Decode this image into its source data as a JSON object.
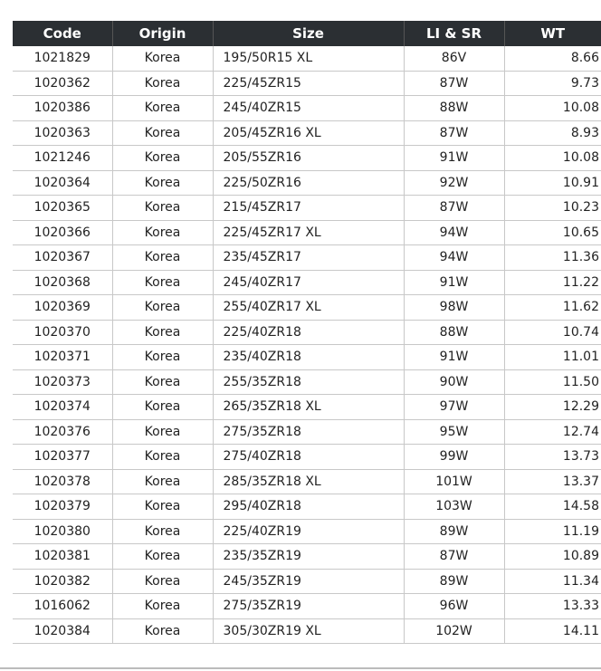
{
  "table": {
    "header": [
      "Code",
      "Origin",
      "Size",
      "LI & SR",
      "WT"
    ],
    "rows": [
      [
        "1021829",
        "Korea",
        "195/50R15 XL",
        "86V",
        "8.66"
      ],
      [
        "1020362",
        "Korea",
        "225/45ZR15",
        "87W",
        "9.73"
      ],
      [
        "1020386",
        "Korea",
        "245/40ZR15",
        "88W",
        "10.08"
      ],
      [
        "1020363",
        "Korea",
        "205/45ZR16 XL",
        "87W",
        "8.93"
      ],
      [
        "1021246",
        "Korea",
        "205/55ZR16",
        "91W",
        "10.08"
      ],
      [
        "1020364",
        "Korea",
        "225/50ZR16",
        "92W",
        "10.91"
      ],
      [
        "1020365",
        "Korea",
        "215/45ZR17",
        "87W",
        "10.23"
      ],
      [
        "1020366",
        "Korea",
        "225/45ZR17 XL",
        "94W",
        "10.65"
      ],
      [
        "1020367",
        "Korea",
        "235/45ZR17",
        "94W",
        "11.36"
      ],
      [
        "1020368",
        "Korea",
        "245/40ZR17",
        "91W",
        "11.22"
      ],
      [
        "1020369",
        "Korea",
        "255/40ZR17 XL",
        "98W",
        "11.62"
      ],
      [
        "1020370",
        "Korea",
        "225/40ZR18",
        "88W",
        "10.74"
      ],
      [
        "1020371",
        "Korea",
        "235/40ZR18",
        "91W",
        "11.01"
      ],
      [
        "1020373",
        "Korea",
        "255/35ZR18",
        "90W",
        "11.50"
      ],
      [
        "1020374",
        "Korea",
        "265/35ZR18 XL",
        "97W",
        "12.29"
      ],
      [
        "1020376",
        "Korea",
        "275/35ZR18",
        "95W",
        "12.74"
      ],
      [
        "1020377",
        "Korea",
        "275/40ZR18",
        "99W",
        "13.73"
      ],
      [
        "1020378",
        "Korea",
        "285/35ZR18 XL",
        "101W",
        "13.37"
      ],
      [
        "1020379",
        "Korea",
        "295/40ZR18",
        "103W",
        "14.58"
      ],
      [
        "1020380",
        "Korea",
        "225/40ZR19",
        "89W",
        "11.19"
      ],
      [
        "1020381",
        "Korea",
        "235/35ZR19",
        "87W",
        "10.89"
      ],
      [
        "1020382",
        "Korea",
        "245/35ZR19",
        "89W",
        "11.34"
      ],
      [
        "1016062",
        "Korea",
        "275/35ZR19",
        "96W",
        "13.33"
      ],
      [
        "1020384",
        "Korea",
        "305/30ZR19 XL",
        "102W",
        "14.11"
      ]
    ]
  }
}
